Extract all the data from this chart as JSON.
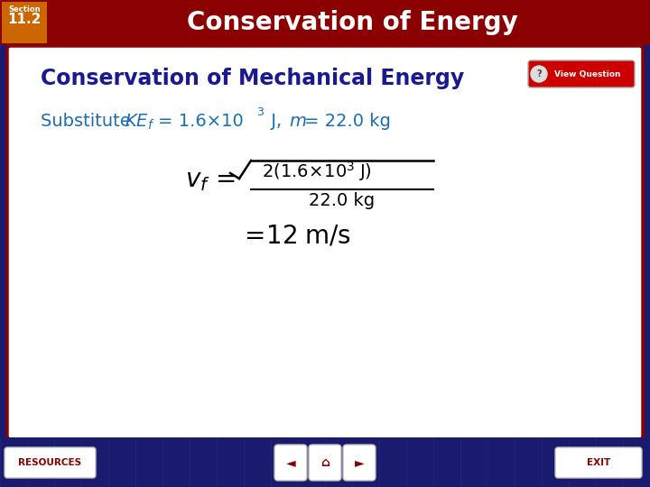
{
  "header_bg_color": "#8B0000",
  "header_text": "Conservation of Energy",
  "header_text_color": "#FFFFFF",
  "section_label": "Section",
  "section_number": "11.2",
  "section_bg_color": "#CC6600",
  "section_text_color": "#FFFFFF",
  "main_bg_color": "#FFFFFF",
  "outer_bg_color": "#1a1a6e",
  "card_border_color": "#8B0000",
  "card_title": "Conservation of Mechanical Energy",
  "card_title_color": "#1a1a8e",
  "substitute_text_color": "#1a6eb5",
  "formula_color": "#000000",
  "footer_bg_color": "#1a1a6e",
  "footer_text_color": "#8B0000",
  "view_question_bg": "#CC0000",
  "view_question_text_color": "#FFFFFF"
}
